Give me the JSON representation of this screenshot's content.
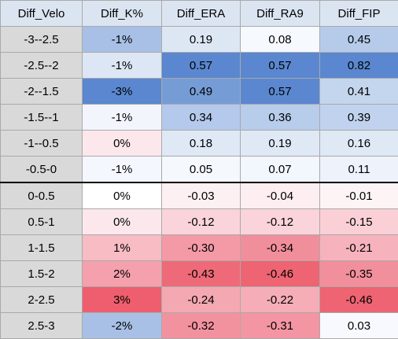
{
  "table": {
    "headers": [
      "Diff_Velo",
      "Diff_K%",
      "Diff_ERA",
      "Diff_RA9",
      "Diff_FIP"
    ],
    "rows": [
      [
        "-3--2.5",
        "-1%",
        "0.19",
        "0.08",
        "0.45"
      ],
      [
        "-2.5--2",
        "-1%",
        "0.57",
        "0.57",
        "0.82"
      ],
      [
        "-2--1.5",
        "-3%",
        "0.49",
        "0.57",
        "0.41"
      ],
      [
        "-1.5--1",
        "-1%",
        "0.34",
        "0.36",
        "0.39"
      ],
      [
        "-1--0.5",
        "0%",
        "0.18",
        "0.19",
        "0.16"
      ],
      [
        "-0.5-0",
        "-1%",
        "0.05",
        "0.07",
        "0.11"
      ],
      [
        "0-0.5",
        "0%",
        "-0.03",
        "-0.04",
        "-0.01"
      ],
      [
        "0.5-1",
        "0%",
        "-0.12",
        "-0.12",
        "-0.15"
      ],
      [
        "1-1.5",
        "1%",
        "-0.30",
        "-0.34",
        "-0.21"
      ],
      [
        "1.5-2",
        "2%",
        "-0.43",
        "-0.46",
        "-0.35"
      ],
      [
        "2-2.5",
        "3%",
        "-0.24",
        "-0.22",
        "-0.46"
      ],
      [
        "2.5-3",
        "-2%",
        "-0.32",
        "-0.31",
        "0.03"
      ]
    ],
    "fills": [
      [
        "#d9d9d9",
        "#a8c0e5",
        "#dde7f4",
        "#f6f9fd",
        "#b6cbea"
      ],
      [
        "#d9d9d9",
        "#dce6f4",
        "#5a87cf",
        "#5a87cf",
        "#5a87cf"
      ],
      [
        "#d9d9d9",
        "#5a87cf",
        "#769cd6",
        "#5a87cf",
        "#c4d5ee"
      ],
      [
        "#d9d9d9",
        "#f2f5fc",
        "#b4c9eb",
        "#b8cceb",
        "#c0d2ed"
      ],
      [
        "#d9d9d9",
        "#fce8ec",
        "#dfe8f5",
        "#dfe8f5",
        "#dfe8f5"
      ],
      [
        "#d9d9d9",
        "#f4f7fd",
        "#f5f8fd",
        "#f2f6fd",
        "#edf2fb"
      ],
      [
        "#d9d9d9",
        "#ffffff",
        "#fdf0f2",
        "#fdeef1",
        "#fdf4f5"
      ],
      [
        "#d9d9d9",
        "#fce8ec",
        "#fad4da",
        "#fad4da",
        "#fad0d6"
      ],
      [
        "#d9d9d9",
        "#f7bcc4",
        "#f49aa6",
        "#f18e9c",
        "#f6b3bd"
      ],
      [
        "#d9d9d9",
        "#f5a0ad",
        "#ee6a78",
        "#ee6472",
        "#f28f9c"
      ],
      [
        "#d9d9d9",
        "#ef5e6e",
        "#f4a8b2",
        "#f5aeb8",
        "#ee6472"
      ],
      [
        "#d9d9d9",
        "#a8c0e5",
        "#f3929f",
        "#f395a2",
        "#f8f9fe"
      ]
    ]
  }
}
